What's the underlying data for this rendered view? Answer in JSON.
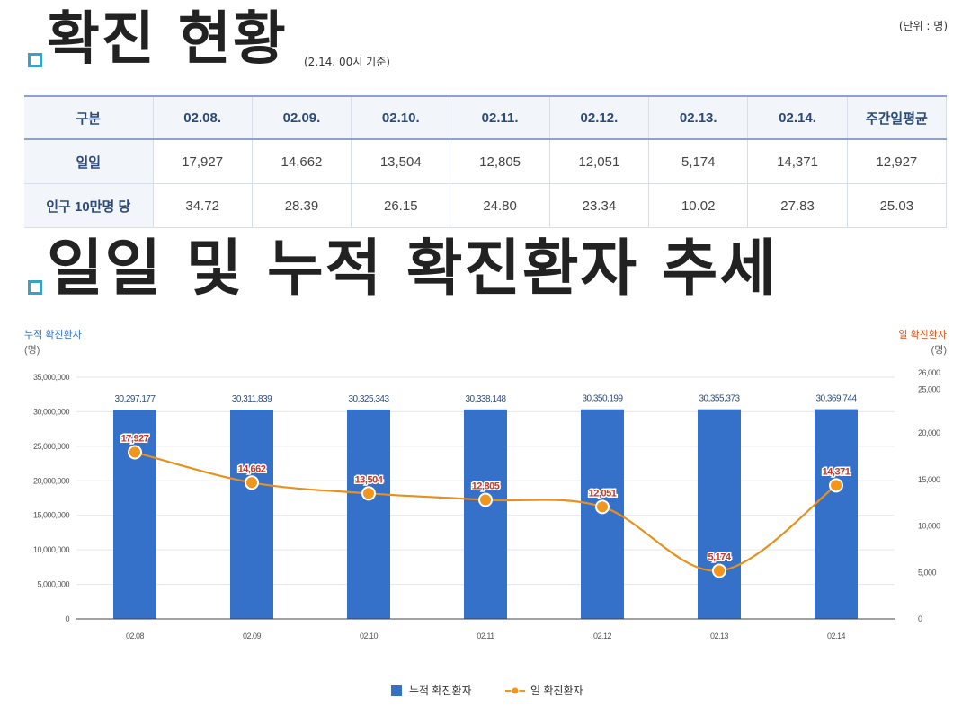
{
  "header": {
    "title": "확진 현황",
    "basis": "(2.14. 00시 기준)",
    "unit": "(단위 : 명)"
  },
  "table": {
    "columns": [
      "구분",
      "02.08.",
      "02.09.",
      "02.10.",
      "02.11.",
      "02.12.",
      "02.13.",
      "02.14.",
      "주간일평균"
    ],
    "rows": [
      {
        "label": "일일",
        "values": [
          "17,927",
          "14,662",
          "13,504",
          "12,805",
          "12,051",
          "5,174",
          "14,371",
          "12,927"
        ]
      },
      {
        "label": "인구 10만명 당",
        "values": [
          "34.72",
          "28.39",
          "26.15",
          "24.80",
          "23.34",
          "10.02",
          "27.83",
          "25.03"
        ]
      }
    ]
  },
  "section2": {
    "title": "일일 및 누적 확진환자 추세"
  },
  "chart_data": {
    "type": "bar",
    "categories": [
      "02.08",
      "02.09",
      "02.10",
      "02.11",
      "02.12",
      "02.13",
      "02.14"
    ],
    "series": [
      {
        "name": "누적 확진환자",
        "type": "bar",
        "axis": "left",
        "color": "#3570c9",
        "values": [
          30297177,
          30311839,
          30325343,
          30338148,
          30350199,
          30355373,
          30369744
        ],
        "labels": [
          "30,297,177",
          "30,311,839",
          "30,325,343",
          "30,338,148",
          "30,350,199",
          "30,355,373",
          "30,369,744"
        ]
      },
      {
        "name": "일 확진환자",
        "type": "line",
        "axis": "right",
        "color": "#f0961e",
        "values": [
          17927,
          14662,
          13504,
          12805,
          12051,
          5174,
          14371
        ],
        "labels": [
          "17,927",
          "14,662",
          "13,504",
          "12,805",
          "12,051",
          "5,174",
          "14,371"
        ]
      }
    ],
    "left_axis": {
      "title": "누적 확진환자",
      "unit": "(명)",
      "ylim": [
        0,
        35000000
      ],
      "ticks": [
        "0",
        "5,000,000",
        "10,000,000",
        "15,000,000",
        "20,000,000",
        "25,000,000",
        "30,000,000",
        "35,000,000"
      ]
    },
    "right_axis": {
      "title": "일 확진환자",
      "unit": "(명)",
      "ylim": [
        0,
        26000
      ],
      "ticks": [
        "0",
        "5,000",
        "10,000",
        "15,000",
        "20,000",
        "25,000",
        "26,000"
      ]
    },
    "legend": [
      "누적 확진환자",
      "일 확진환자"
    ],
    "grid": true
  }
}
